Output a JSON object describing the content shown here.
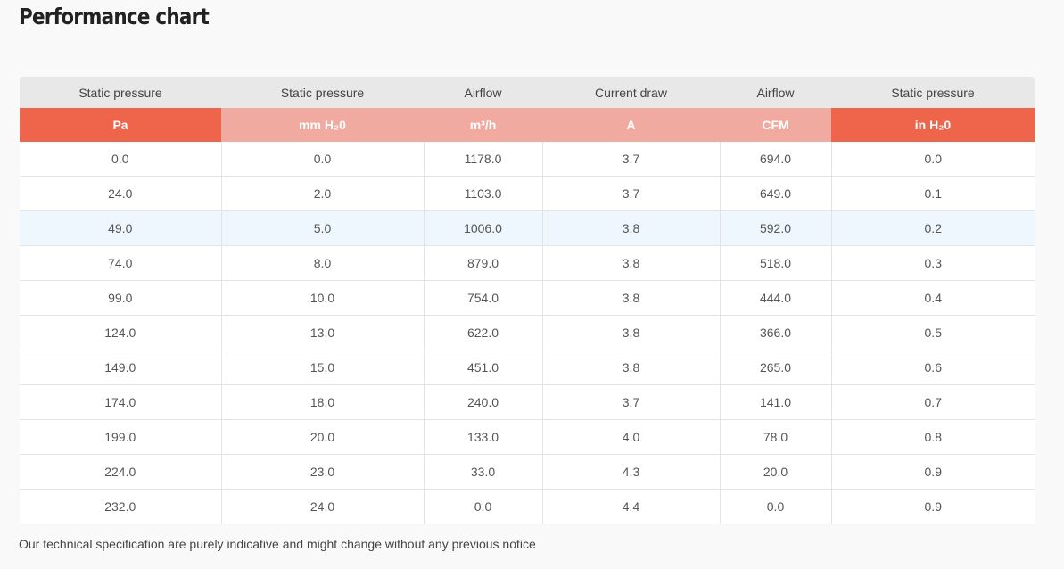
{
  "page": {
    "title": "Performance chart",
    "footnote": "Our technical specification are purely indicative and might change without any previous notice"
  },
  "table": {
    "columns": [
      {
        "header": "Static pressure",
        "unit": "Pa",
        "accent": "#ee654c"
      },
      {
        "header": "Static pressure",
        "unit": "mm H₂0",
        "accent": "#f0aaa0"
      },
      {
        "header": "Airflow",
        "unit": "m³/h",
        "accent": "#f0aaa0"
      },
      {
        "header": "Current draw",
        "unit": "A",
        "accent": "#f0aaa0"
      },
      {
        "header": "Airflow",
        "unit": "CFM",
        "accent": "#f0aaa0"
      },
      {
        "header": "Static pressure",
        "unit": "in H₂0",
        "accent": "#ee654c"
      }
    ],
    "highlighted_row_index": 2,
    "rows": [
      [
        "0.0",
        "0.0",
        "1178.0",
        "3.7",
        "694.0",
        "0.0"
      ],
      [
        "24.0",
        "2.0",
        "1103.0",
        "3.7",
        "649.0",
        "0.1"
      ],
      [
        "49.0",
        "5.0",
        "1006.0",
        "3.8",
        "592.0",
        "0.2"
      ],
      [
        "74.0",
        "8.0",
        "879.0",
        "3.8",
        "518.0",
        "0.3"
      ],
      [
        "99.0",
        "10.0",
        "754.0",
        "3.8",
        "444.0",
        "0.4"
      ],
      [
        "124.0",
        "13.0",
        "622.0",
        "3.8",
        "366.0",
        "0.5"
      ],
      [
        "149.0",
        "15.0",
        "451.0",
        "3.8",
        "265.0",
        "0.6"
      ],
      [
        "174.0",
        "18.0",
        "240.0",
        "3.7",
        "141.0",
        "0.7"
      ],
      [
        "199.0",
        "20.0",
        "133.0",
        "4.0",
        "78.0",
        "0.8"
      ],
      [
        "224.0",
        "23.0",
        "33.0",
        "4.3",
        "20.0",
        "0.9"
      ],
      [
        "232.0",
        "24.0",
        "0.0",
        "4.4",
        "0.0",
        "0.9"
      ]
    ]
  }
}
